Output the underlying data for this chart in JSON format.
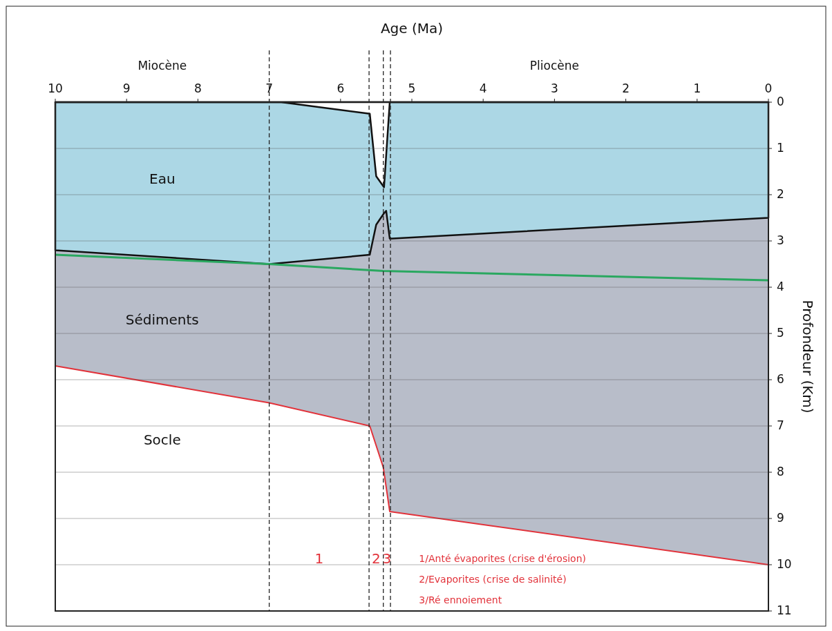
{
  "chart_data": {
    "type": "area",
    "xlabel": "Age (Ma)",
    "ylabel": "Profondeur (Km)",
    "xlim": [
      10,
      0
    ],
    "xticks": [
      10,
      9,
      8,
      7,
      6,
      5,
      4,
      3,
      2,
      1,
      0
    ],
    "ylim": [
      11,
      0
    ],
    "yticks": [
      0,
      1,
      2,
      3,
      4,
      5,
      6,
      7,
      8,
      9,
      10,
      11
    ],
    "grid": "y",
    "series": [
      {
        "name": "Sédiments",
        "type": "area",
        "color": "#b8bdc9",
        "x": [
          10,
          7,
          5.59,
          5.4,
          5.31,
          0
        ],
        "values": [
          5.7,
          6.5,
          7.0,
          7.9,
          8.85,
          10.0
        ]
      },
      {
        "name": "Eau",
        "type": "area",
        "color": "#acd7e5",
        "x": [
          10,
          7,
          5.59,
          5.5,
          5.39,
          5.36,
          5.31,
          0
        ],
        "values": [
          3.2,
          3.5,
          3.3,
          2.65,
          2.4,
          2.35,
          2.95,
          2.5
        ]
      },
      {
        "color": "#ffffff",
        "x": [
          10,
          6.83,
          5.59,
          5.5,
          5.39,
          5.31,
          0
        ],
        "values": [
          0,
          0,
          0.25,
          1.6,
          1.84,
          0,
          0
        ]
      },
      {
        "type": "line",
        "color": "#2aa860",
        "x": [
          10,
          7,
          5.4,
          0
        ],
        "values": [
          3.3,
          3.5,
          3.65,
          3.85
        ]
      }
    ],
    "ref_lines": [
      {
        "axis": "x",
        "value": 7,
        "line_style": "dashed"
      },
      {
        "axis": "x",
        "value": 5.6,
        "line_style": "dashed"
      },
      {
        "axis": "x",
        "value": 5.4,
        "line_style": "dashed"
      },
      {
        "axis": "x",
        "value": 5.3,
        "line_style": "dashed"
      }
    ],
    "annotations": [
      "Miocène",
      "Pliocène",
      "Socle",
      "1",
      "2",
      "3",
      "1/Anté évaporites (crise d'érosion)",
      "2/Evaporites (crise de salinité)",
      "3/Ré ennoiement"
    ]
  }
}
